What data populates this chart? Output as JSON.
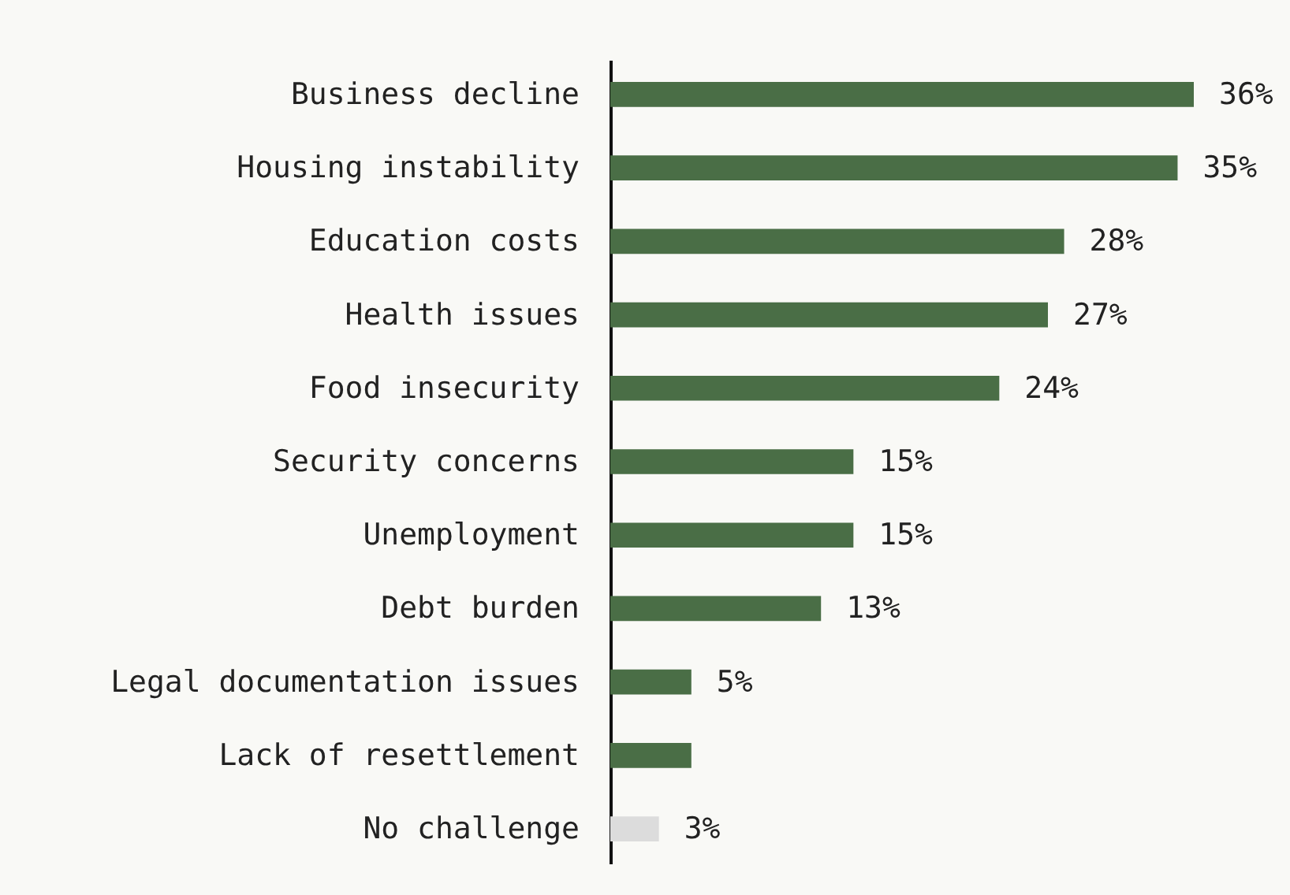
{
  "chart_data": {
    "type": "bar",
    "orientation": "horizontal",
    "categories": [
      "Business decline",
      "Housing instability",
      "Education costs",
      "Health issues",
      "Food insecurity",
      "Security concerns",
      "Unemployment",
      "Debt burden",
      "Legal documentation issues",
      "Lack of resettlement",
      "No challenge"
    ],
    "values": [
      36,
      35,
      28,
      27,
      24,
      15,
      15,
      13,
      5,
      5,
      3
    ],
    "value_labels": [
      "36%",
      "35%",
      "28%",
      "27%",
      "24%",
      "15%",
      "15%",
      "13%",
      "5%",
      null,
      "3%"
    ],
    "colors": [
      "#4a6e46",
      "#4a6e46",
      "#4a6e46",
      "#4a6e46",
      "#4a6e46",
      "#4a6e46",
      "#4a6e46",
      "#4a6e46",
      "#4a6e46",
      "#4a6e46",
      "#dcdcdc"
    ]
  }
}
